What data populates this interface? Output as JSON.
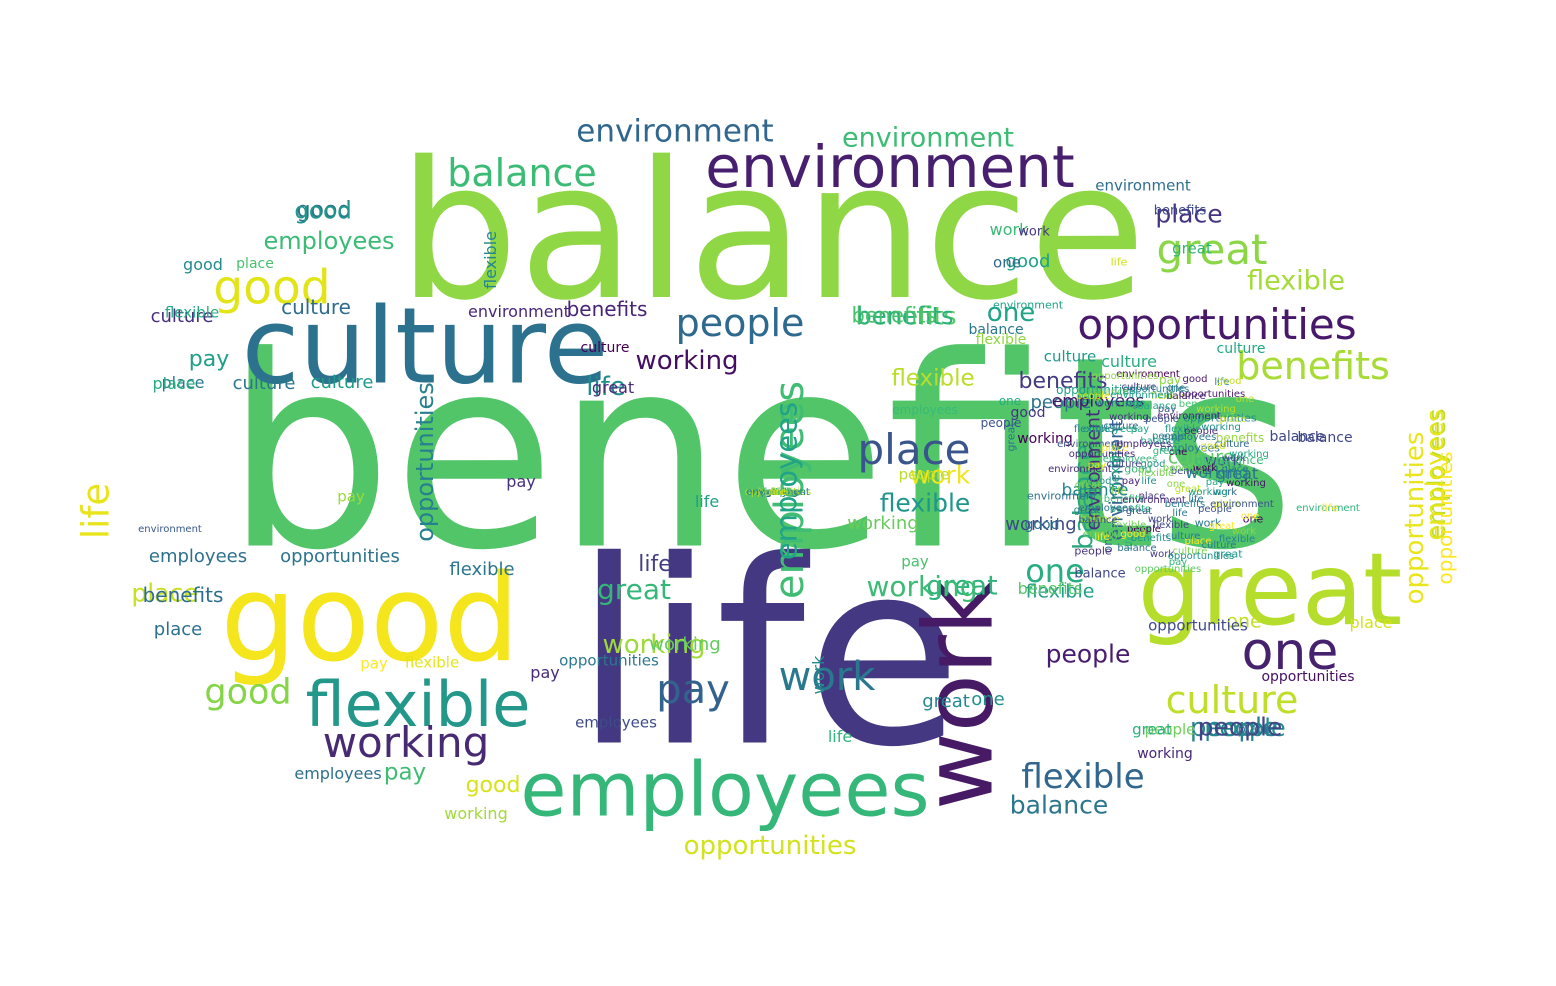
{
  "colors": {
    "background": "#ffffff",
    "palette": [
      "#440154",
      "#472f7d",
      "#3b518b",
      "#2c718e",
      "#21908d",
      "#27ad81",
      "#5cc863",
      "#aadc32",
      "#fde725"
    ]
  },
  "words": [
    {
      "text": "benefits",
      "color": "#52c569"
    },
    {
      "text": "life",
      "color": "#433881"
    },
    {
      "text": "balance",
      "color": "#8fd744"
    },
    {
      "text": "culture",
      "color": "#2c728e"
    },
    {
      "text": "good",
      "color": "#f5e51c"
    },
    {
      "text": "great",
      "color": "#b5dd2b"
    },
    {
      "text": "work",
      "color": "#471a65"
    },
    {
      "text": "employees",
      "color": "#35b779"
    },
    {
      "text": "environment",
      "color": "#471f6e"
    },
    {
      "text": "flexible",
      "color": "#22978a"
    },
    {
      "text": "one",
      "color": "#46216d"
    },
    {
      "text": "opportunities",
      "color": "#48186a"
    },
    {
      "text": "working",
      "color": "#482a73"
    },
    {
      "text": "people",
      "color": "#2e6a8e"
    },
    {
      "text": "pay",
      "color": "#33628d"
    },
    {
      "text": "work",
      "color": "#2a788e"
    },
    {
      "text": "employees",
      "color": "#40bd72"
    },
    {
      "text": "culture",
      "color": "#bfde27"
    },
    {
      "text": "balance",
      "color": "#3bbb75"
    },
    {
      "text": "place",
      "color": "#3a548c"
    },
    {
      "text": "balance",
      "color": "#2aa67f"
    },
    {
      "text": "environment",
      "color": "#3cbc74"
    },
    {
      "text": "benefits",
      "color": "#a7db35"
    },
    {
      "text": "flexible",
      "color": "#31668e"
    },
    {
      "text": "opportunities",
      "color": "#eae51a"
    },
    {
      "text": "great",
      "color": "#8bd646"
    },
    {
      "text": "great",
      "color": "#36b77a"
    },
    {
      "text": "people",
      "color": "#27848e"
    },
    {
      "text": "employees",
      "color": "#3bbb75"
    },
    {
      "text": "place",
      "color": "#463480"
    },
    {
      "text": "environment",
      "color": "#31678e"
    },
    {
      "text": "life",
      "color": "#e8e419"
    },
    {
      "text": "flexible",
      "color": "#a5db36"
    },
    {
      "text": "employees",
      "color": "#bade28"
    },
    {
      "text": "good",
      "color": "#e2e418"
    },
    {
      "text": "people",
      "color": "#481c6e"
    },
    {
      "text": "culture",
      "color": "#2f6c8e"
    },
    {
      "text": "flexible",
      "color": "#1f968b"
    },
    {
      "text": "work",
      "color": "#f0e51c"
    },
    {
      "text": "balance",
      "color": "#2b768e"
    },
    {
      "text": "opportunities",
      "color": "#d2e21b"
    },
    {
      "text": "working",
      "color": "#a0da39"
    },
    {
      "text": "benefits",
      "color": "#5ac864"
    },
    {
      "text": "one",
      "color": "#28ae80"
    },
    {
      "text": "great",
      "color": "#2eb37c"
    },
    {
      "text": "pay",
      "color": "#3fbc73"
    },
    {
      "text": "good",
      "color": "#d8e219"
    },
    {
      "text": "working",
      "color": "#450f61"
    },
    {
      "text": "environment",
      "color": "#32648e"
    },
    {
      "text": "employees",
      "color": "#2d708e"
    },
    {
      "text": "opportunities",
      "color": "#27808e"
    },
    {
      "text": "place",
      "color": "#c9e020"
    },
    {
      "text": "people",
      "color": "#23898e"
    },
    {
      "text": "flexible",
      "color": "#1f9f88"
    },
    {
      "text": "good",
      "color": "#2d718e"
    },
    {
      "text": "benefits",
      "color": "#482475"
    },
    {
      "text": "place",
      "color": "#29798e"
    },
    {
      "text": "culture",
      "color": "#2b758e"
    },
    {
      "text": "pay",
      "color": "#1f9e89"
    },
    {
      "text": "working",
      "color": "#3e4989"
    },
    {
      "text": "culture",
      "color": "#1e9b8a"
    },
    {
      "text": "life",
      "color": "#228c8d"
    },
    {
      "text": "flexible",
      "color": "#b8de29"
    },
    {
      "text": "one",
      "color": "#20a486"
    },
    {
      "text": "great",
      "color": "#306a8e"
    },
    {
      "text": "working",
      "color": "#3bbb75"
    },
    {
      "text": "work",
      "color": "#238a8d"
    },
    {
      "text": "place",
      "color": "#2d708e"
    },
    {
      "text": "benefits",
      "color": "#2ab07f"
    },
    {
      "text": "environment",
      "color": "#2e6e8e"
    },
    {
      "text": "good",
      "color": "#1fa287"
    },
    {
      "text": "balance",
      "color": "#2a788e"
    },
    {
      "text": "culture",
      "color": "#5ec962"
    },
    {
      "text": "employees",
      "color": "#20a386"
    },
    {
      "text": "opportunities",
      "color": "#2b748e"
    },
    {
      "text": "benefits",
      "color": "#443a83"
    },
    {
      "text": "flexible",
      "color": "#24868e"
    },
    {
      "text": "environment",
      "color": "#472d7b"
    },
    {
      "text": "people",
      "color": "#2c738e"
    },
    {
      "text": "working",
      "color": "#67cc5c"
    },
    {
      "text": "great",
      "color": "#2eb37c"
    },
    {
      "text": "pay",
      "color": "#9bd93c"
    },
    {
      "text": "good",
      "color": "#86d549"
    },
    {
      "text": "employees",
      "color": "#3e4a89"
    },
    {
      "text": "life",
      "color": "#433e85"
    },
    {
      "text": "one",
      "color": "#c2df23"
    },
    {
      "text": "opportunities",
      "color": "#fde725"
    },
    {
      "text": "culture",
      "color": "#1f998a"
    },
    {
      "text": "balance",
      "color": "#3f4889"
    },
    {
      "text": "place",
      "color": "#d5e21a"
    },
    {
      "text": "working",
      "color": "#25848e"
    },
    {
      "text": "pay",
      "color": "#46307e"
    },
    {
      "text": "flexible",
      "color": "#2a768e"
    },
    {
      "text": "benefits",
      "color": "#48c16e"
    },
    {
      "text": "environment",
      "color": "#482677"
    },
    {
      "text": "great",
      "color": "#24878e"
    },
    {
      "text": "one",
      "color": "#20928c"
    },
    {
      "text": "life",
      "color": "#31b57b"
    },
    {
      "text": "people",
      "color": "#414487"
    },
    {
      "text": "employees",
      "color": "#e7e419"
    },
    {
      "text": "good",
      "color": "#1f958b"
    },
    {
      "text": "culture",
      "color": "#27ad81"
    },
    {
      "text": "place",
      "color": "#25ac82"
    },
    {
      "text": "work",
      "color": "#3aba76"
    },
    {
      "text": "balance",
      "color": "#24878e"
    },
    {
      "text": "opportunities",
      "color": "#470e61"
    },
    {
      "text": "working",
      "color": "#63cb5f"
    },
    {
      "text": "benefits",
      "color": "#2e6f8e"
    },
    {
      "text": "flexible",
      "color": "#22a785"
    },
    {
      "text": "environment",
      "color": "#2eb37c"
    },
    {
      "text": "pay",
      "color": "#fde725"
    },
    {
      "text": "life",
      "color": "#1fa188"
    },
    {
      "text": "great",
      "color": "#472c7a"
    },
    {
      "text": "good",
      "color": "#23898e"
    },
    {
      "text": "one",
      "color": "#31688e"
    },
    {
      "text": "people",
      "color": "#6ece58"
    },
    {
      "text": "employees",
      "color": "#481467"
    },
    {
      "text": "opportunities",
      "color": "#2a788e"
    },
    {
      "text": "culture",
      "color": "#472f7d"
    },
    {
      "text": "place",
      "color": "#4ac16d"
    },
    {
      "text": "working",
      "color": "#a2da37"
    },
    {
      "text": "balance",
      "color": "#3f4788"
    },
    {
      "text": "flexible",
      "color": "#e5e419"
    },
    {
      "text": "benefits",
      "color": "#56c667"
    },
    {
      "text": "environment",
      "color": "#1fa287"
    },
    {
      "text": "work",
      "color": "#3e4c8a"
    },
    {
      "text": "life",
      "color": "#fde725"
    },
    {
      "text": "pay",
      "color": "#472a7a"
    },
    {
      "text": "one",
      "color": "#2e6e8e"
    },
    {
      "text": "good",
      "color": "#453581"
    },
    {
      "text": "great",
      "color": "#2ab07f"
    },
    {
      "text": "people",
      "color": "#b8de29"
    },
    {
      "text": "employees",
      "color": "#2d708e"
    },
    {
      "text": "culture",
      "color": "#22a884"
    },
    {
      "text": "opportunities",
      "color": "#3e4a89"
    },
    {
      "text": "flexible",
      "color": "#25ab82"
    },
    {
      "text": "working",
      "color": "#440154"
    },
    {
      "text": "benefits",
      "color": "#3e4989"
    },
    {
      "text": "place",
      "color": "#2a768e"
    },
    {
      "text": "environment",
      "color": "#38588c"
    },
    {
      "text": "balance",
      "color": "#3bbb75"
    },
    {
      "text": "life",
      "color": "#d0e11c"
    },
    {
      "text": "one",
      "color": "#27ad81"
    },
    {
      "text": "pay",
      "color": "#4ac16d"
    },
    {
      "text": "great",
      "color": "#2b748e"
    },
    {
      "text": "good",
      "color": "#2c728e"
    },
    {
      "text": "work",
      "color": "#453882"
    },
    {
      "text": "people",
      "color": "#3b528b"
    },
    {
      "text": "employees",
      "color": "#38b977"
    },
    {
      "text": "culture",
      "color": "#440154"
    },
    {
      "text": "working",
      "color": "#482475"
    },
    {
      "text": "opportunities",
      "color": "#1f9f88"
    },
    {
      "text": "flexible",
      "color": "#90d743"
    },
    {
      "text": "balance",
      "color": "#3f4788"
    },
    {
      "text": "benefits",
      "color": "#98d83e"
    },
    {
      "text": "environment",
      "color": "#2d718e"
    },
    {
      "text": "place",
      "color": "#3dbc74"
    },
    {
      "text": "life",
      "color": "#2eb37c"
    },
    {
      "text": "one",
      "color": "#440154"
    },
    {
      "text": "pay",
      "color": "#8bd646"
    },
    {
      "text": "good",
      "color": "#3aba76"
    },
    {
      "text": "great",
      "color": "#1e9b8a"
    },
    {
      "text": "work",
      "color": "#2a788e"
    },
    {
      "text": "people",
      "color": "#46337f"
    },
    {
      "text": "employees",
      "color": "#2a768e"
    },
    {
      "text": "culture",
      "color": "#34618d"
    },
    {
      "text": "opportunities",
      "color": "#24878e"
    },
    {
      "text": "flexible",
      "color": "#1f998a"
    },
    {
      "text": "working",
      "color": "#2c718e"
    },
    {
      "text": "balance",
      "color": "#b5dd2b"
    },
    {
      "text": "benefits",
      "color": "#2ab07f"
    },
    {
      "text": "environment",
      "color": "#482878"
    },
    {
      "text": "place",
      "color": "#443983"
    },
    {
      "text": "life",
      "color": "#26828e"
    },
    {
      "text": "one",
      "color": "#fde725"
    },
    {
      "text": "pay",
      "color": "#3b528b"
    },
    {
      "text": "good",
      "color": "#48186a"
    },
    {
      "text": "great",
      "color": "#bade28"
    },
    {
      "text": "people",
      "color": "#440154"
    },
    {
      "text": "work",
      "color": "#31688e"
    },
    {
      "text": "employees",
      "color": "#21a685"
    },
    {
      "text": "culture",
      "color": "#453781"
    },
    {
      "text": "opportunities",
      "color": "#5ec962"
    },
    {
      "text": "flexible",
      "color": "#26828e"
    },
    {
      "text": "working",
      "color": "#46327e"
    },
    {
      "text": "balance",
      "color": "#1fa188"
    },
    {
      "text": "benefits",
      "color": "#4ac16d"
    },
    {
      "text": "environment",
      "color": "#3b528b"
    },
    {
      "text": "place",
      "color": "#fde725"
    },
    {
      "text": "life",
      "color": "#2a788e"
    },
    {
      "text": "one",
      "color": "#bddf26"
    },
    {
      "text": "pay",
      "color": "#482173"
    },
    {
      "text": "good",
      "color": "#21918c"
    },
    {
      "text": "great",
      "color": "#26828e"
    },
    {
      "text": "people",
      "color": "#3b528b"
    },
    {
      "text": "work",
      "color": "#443983"
    },
    {
      "text": "employees",
      "color": "#70cf57"
    },
    {
      "text": "culture",
      "color": "#31688e"
    },
    {
      "text": "opportunities",
      "color": "#482878"
    },
    {
      "text": "flexible",
      "color": "#b5dd2b"
    },
    {
      "text": "working",
      "color": "#1f9e89"
    },
    {
      "text": "balance",
      "color": "#2c728e"
    },
    {
      "text": "benefits",
      "color": "#3e4989"
    },
    {
      "text": "environment",
      "color": "#440154"
    },
    {
      "text": "place",
      "color": "#2a788e"
    },
    {
      "text": "life",
      "color": "#9fda3a"
    },
    {
      "text": "one",
      "color": "#440154"
    },
    {
      "text": "pay",
      "color": "#22a884"
    },
    {
      "text": "good",
      "color": "#21918c"
    },
    {
      "text": "great",
      "color": "#fde725"
    },
    {
      "text": "people",
      "color": "#482475"
    },
    {
      "text": "work",
      "color": "#3e4989"
    },
    {
      "text": "employees",
      "color": "#35b779"
    },
    {
      "text": "culture",
      "color": "#2a788e"
    },
    {
      "text": "opportunities",
      "color": "#481a6c"
    },
    {
      "text": "flexible",
      "color": "#26828e"
    },
    {
      "text": "working",
      "color": "#471365"
    },
    {
      "text": "balance",
      "color": "#22a884"
    },
    {
      "text": "benefits",
      "color": "#35b779"
    },
    {
      "text": "environment",
      "color": "#482173"
    },
    {
      "text": "place",
      "color": "#d2e21b"
    },
    {
      "text": "life",
      "color": "#21918c"
    },
    {
      "text": "one",
      "color": "#8fd744"
    },
    {
      "text": "pay",
      "color": "#eae51a"
    },
    {
      "text": "good",
      "color": "#d8e219"
    },
    {
      "text": "great",
      "color": "#3b528b"
    },
    {
      "text": "people",
      "color": "#26828e"
    },
    {
      "text": "work",
      "color": "#3e4989"
    },
    {
      "text": "employees",
      "color": "#2c728e"
    },
    {
      "text": "culture",
      "color": "#7ad151"
    },
    {
      "text": "opportunities",
      "color": "#26828e"
    },
    {
      "text": "flexible",
      "color": "#6ece58"
    },
    {
      "text": "working",
      "color": "#21918c"
    },
    {
      "text": "balance",
      "color": "#482475"
    },
    {
      "text": "benefits",
      "color": "#21918c"
    },
    {
      "text": "environment",
      "color": "#3b528b"
    },
    {
      "text": "place",
      "color": "#fde725"
    },
    {
      "text": "life",
      "color": "#2c728e"
    },
    {
      "text": "one",
      "color": "#22a884"
    },
    {
      "text": "pay",
      "color": "#35b779"
    },
    {
      "text": "good",
      "color": "#c8e020"
    },
    {
      "text": "great",
      "color": "#7ad151"
    },
    {
      "text": "people",
      "color": "#3b528b"
    },
    {
      "text": "work",
      "color": "#440154"
    },
    {
      "text": "employees",
      "color": "#482475"
    },
    {
      "text": "culture",
      "color": "#2a788e"
    },
    {
      "text": "opportunities",
      "color": "#8fd744"
    },
    {
      "text": "flexible",
      "color": "#414487"
    },
    {
      "text": "working",
      "color": "#22a884"
    },
    {
      "text": "balance",
      "color": "#6ece58"
    },
    {
      "text": "benefits",
      "color": "#2a788e"
    },
    {
      "text": "environment",
      "color": "#482878"
    },
    {
      "text": "place",
      "color": "#c2df23"
    },
    {
      "text": "life",
      "color": "#fde725"
    },
    {
      "text": "one",
      "color": "#2a788e"
    },
    {
      "text": "pay",
      "color": "#22a884"
    },
    {
      "text": "good",
      "color": "#fde725"
    },
    {
      "text": "great",
      "color": "#35b779"
    },
    {
      "text": "people",
      "color": "#d8e219"
    },
    {
      "text": "work",
      "color": "#8fd744"
    },
    {
      "text": "employees",
      "color": "#2a788e"
    },
    {
      "text": "culture",
      "color": "#414487"
    },
    {
      "text": "opportunities",
      "color": "#21918c"
    },
    {
      "text": "flexible",
      "color": "#7ad151"
    },
    {
      "text": "working",
      "color": "#b5dd2b"
    },
    {
      "text": "balance",
      "color": "#3b528b"
    },
    {
      "text": "benefits",
      "color": "#70cf57"
    },
    {
      "text": "environment",
      "color": "#1f9e89"
    },
    {
      "text": "place",
      "color": "#35b779"
    },
    {
      "text": "life",
      "color": "#6ece58"
    },
    {
      "text": "one",
      "color": "#bddf26"
    },
    {
      "text": "pay",
      "color": "#d0e11c"
    },
    {
      "text": "good",
      "color": "#3b528b"
    },
    {
      "text": "great",
      "color": "#26828e"
    },
    {
      "text": "people",
      "color": "#21918c"
    },
    {
      "text": "work",
      "color": "#482878"
    },
    {
      "text": "employees",
      "color": "#2c728e"
    },
    {
      "text": "culture",
      "color": "#35b779"
    },
    {
      "text": "opportunities",
      "color": "#b5dd2b"
    },
    {
      "text": "flexible",
      "color": "#5ec962"
    },
    {
      "text": "working",
      "color": "#2a788e"
    },
    {
      "text": "balance",
      "color": "#d8e219"
    },
    {
      "text": "benefits",
      "color": "#7ad151"
    },
    {
      "text": "environment",
      "color": "#26828e"
    },
    {
      "text": "place",
      "color": "#70cf57"
    },
    {
      "text": "life",
      "color": "#bade28"
    },
    {
      "text": "one",
      "color": "#d0e11c"
    }
  ]
}
